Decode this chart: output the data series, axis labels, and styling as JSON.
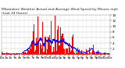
{
  "title": "Milwaukee Weather Actual and Average Wind Speed by Minute mph (Last 24 Hours)",
  "ylim": [
    0,
    14
  ],
  "yticks": [
    2,
    4,
    6,
    8,
    10,
    12,
    14
  ],
  "bar_color": "#ff0000",
  "line_color": "#0000ff",
  "background_color": "#ffffff",
  "grid_color": "#bbbbbb",
  "n_points": 1440,
  "title_fontsize": 3.2,
  "tick_fontsize": 3.0,
  "n_xticks": 25,
  "xtick_labels": [
    "12a",
    "1a",
    "2a",
    "3a",
    "4a",
    "5a",
    "6a",
    "7a",
    "8a",
    "9a",
    "10a",
    "11a",
    "12p",
    "1p",
    "2p",
    "3p",
    "4p",
    "5p",
    "6p",
    "7p",
    "8p",
    "9p",
    "10p",
    "11p",
    "12a"
  ]
}
